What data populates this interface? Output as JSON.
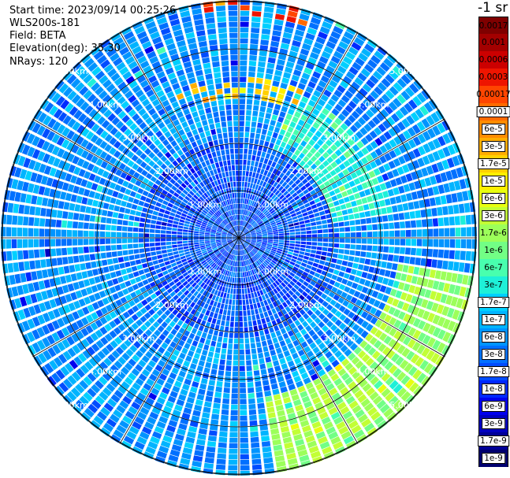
{
  "header": {
    "start_time": "Start time: 2023/09/14 00:25:26",
    "instrument": "WLS200s-181",
    "field": "Field: BETA",
    "elevation": "Elevation(deg): 35.30",
    "nrays": "NRays: 120"
  },
  "chart_data": {
    "type": "polar_ppi",
    "field": "BETA",
    "unit_label": "-1 sr",
    "n_rays": 120,
    "elevation_deg": 35.3,
    "range_rings": [
      {
        "label": "1.00km",
        "value_km": 1.0
      },
      {
        "label": "2.00km",
        "value_km": 2.0
      },
      {
        "label": "3.00km",
        "value_km": 3.0
      },
      {
        "label": "4.00km",
        "value_km": 4.0
      },
      {
        "label": "5.00km",
        "value_km": 5.0
      }
    ],
    "spokes_deg": [
      0,
      30,
      60,
      90,
      120,
      150,
      180,
      210,
      240,
      270,
      300,
      330
    ],
    "background_level": 5.5e-08,
    "features": [
      {
        "region": "center",
        "beta": 2e-08
      },
      {
        "region": "north-east inner ring",
        "beta": 3e-07
      },
      {
        "region": "south-east outer arc",
        "beta": 1.7e-06
      },
      {
        "region": "north outer edge",
        "beta": 0.0002
      },
      {
        "region": "north 4km arc",
        "beta": 1.5e-05
      }
    ],
    "colorbar": [
      {
        "label": "0.0017",
        "color": "#7f0000"
      },
      {
        "label": "0.001",
        "color": "#a30000"
      },
      {
        "label": "0.0006",
        "color": "#cc0000"
      },
      {
        "label": "0.0003",
        "color": "#ee1500"
      },
      {
        "label": "0.00017",
        "color": "#ff4500"
      },
      {
        "label": "0.0001",
        "color": "#ff6a00"
      },
      {
        "label": "6e-5",
        "color": "#ff8c00"
      },
      {
        "label": "3e-5",
        "color": "#ffae00"
      },
      {
        "label": "1.7e-5",
        "color": "#ffd000"
      },
      {
        "label": "1e-5",
        "color": "#ffee00"
      },
      {
        "label": "6e-6",
        "color": "#e8ff10"
      },
      {
        "label": "3e-6",
        "color": "#c2ff35"
      },
      {
        "label": "1.7e-6",
        "color": "#9cff5a"
      },
      {
        "label": "1e-6",
        "color": "#72ff85"
      },
      {
        "label": "6e-7",
        "color": "#48ffae"
      },
      {
        "label": "3e-7",
        "color": "#1ef0d8"
      },
      {
        "label": "1.7e-7",
        "color": "#00d0ff"
      },
      {
        "label": "1e-7",
        "color": "#00b4ff"
      },
      {
        "label": "6e-8",
        "color": "#0094ff"
      },
      {
        "label": "3e-8",
        "color": "#0070ff"
      },
      {
        "label": "1.7e-8",
        "color": "#004cff"
      },
      {
        "label": "1e-8",
        "color": "#0028ff"
      },
      {
        "label": "6e-9",
        "color": "#0000ee"
      },
      {
        "label": "3e-9",
        "color": "#0000c0"
      },
      {
        "label": "1.7e-9",
        "color": "#000096"
      },
      {
        "label": "1e-9",
        "color": "#000070"
      }
    ]
  }
}
